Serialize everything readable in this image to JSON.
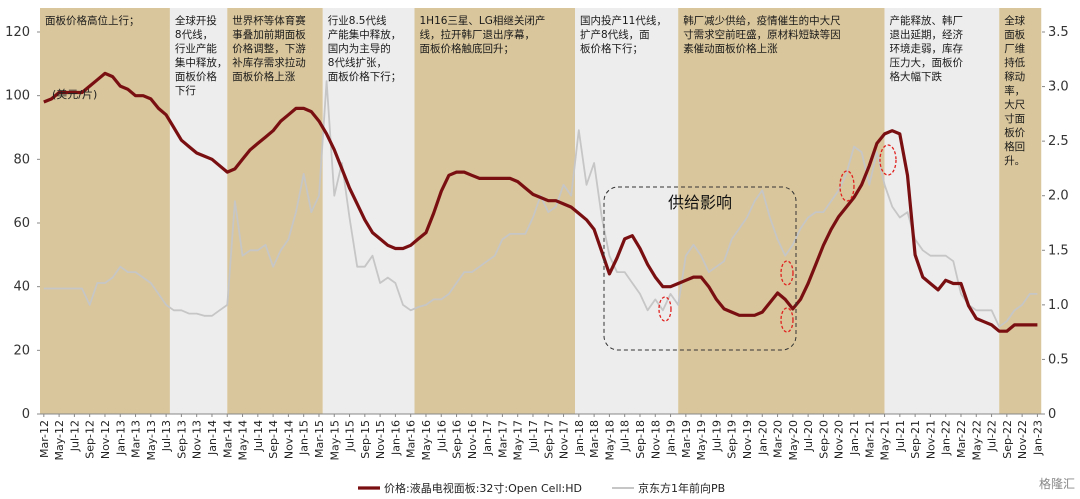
{
  "chart_data": {
    "type": "line",
    "unit_label": "(美元/片)",
    "box_label": "供给影响",
    "watermark": "格隆汇",
    "categories": [
      "Mar-12",
      null,
      "May-12",
      null,
      "Jul-12",
      null,
      "Sep-12",
      null,
      "Nov-12",
      null,
      "Jan-13",
      null,
      "Mar-13",
      null,
      "May-13",
      null,
      "Jul-13",
      null,
      "Sep-13",
      null,
      "Nov-13",
      null,
      "Jan-14",
      null,
      "Mar-14",
      null,
      "May-14",
      null,
      "Jul-14",
      null,
      "Sep-14",
      null,
      "Nov-14",
      null,
      "Jan-15",
      null,
      "Mar-15",
      null,
      "May-15",
      null,
      "Jul-15",
      null,
      "Sep-15",
      null,
      "Nov-15",
      null,
      "Jan-16",
      null,
      "Mar-16",
      null,
      "May-16",
      null,
      "Jul-16",
      null,
      "Sep-16",
      null,
      "Nov-16",
      null,
      "Jan-17",
      null,
      "Mar-17",
      null,
      "May-17",
      null,
      "Jul-17",
      null,
      "Sep-17",
      null,
      "Nov-17",
      null,
      "Jan-18",
      null,
      "Mar-18",
      null,
      "May-18",
      null,
      "Jul-18",
      null,
      "Sep-18",
      null,
      "Nov-18",
      null,
      "Jan-19",
      null,
      "Mar-19",
      null,
      "May-19",
      null,
      "Jul-19",
      null,
      "Sep-19",
      null,
      "Nov-19",
      null,
      "Jan-20",
      null,
      "Mar-20",
      null,
      "May-20",
      null,
      "Jul-20",
      null,
      "Sep-20",
      null,
      "Nov-20",
      null,
      "Jan-21",
      null,
      "Mar-21",
      null,
      "May-21",
      null,
      "Jul-21",
      null,
      "Sep-21",
      null,
      "Nov-21",
      null,
      "Jan-22",
      null,
      "Mar-22",
      null,
      "May-22",
      null,
      "Jul-22",
      null,
      "Sep-22",
      null,
      "Nov-22",
      null,
      "Jan-23"
    ],
    "series": [
      {
        "name": "价格:液晶电视面板:32寸:Open Cell:HD",
        "color": "#7a0f12",
        "axis": "y",
        "values": [
          98,
          99,
          101,
          101,
          101,
          101,
          103,
          105,
          107,
          106,
          103,
          102,
          100,
          100,
          99,
          96,
          94,
          90,
          86,
          84,
          82,
          81,
          80,
          78,
          76,
          77,
          80,
          83,
          85,
          87,
          89,
          92,
          94,
          96,
          96,
          95,
          92,
          88,
          83,
          77,
          71,
          66,
          61,
          57,
          55,
          53,
          52,
          52,
          53,
          55,
          57,
          63,
          70,
          75,
          76,
          76,
          75,
          74,
          74,
          74,
          74,
          74,
          73,
          71,
          69,
          68,
          67,
          67,
          66,
          65,
          63,
          61,
          58,
          51,
          44,
          49,
          55,
          56,
          52,
          47,
          43,
          40,
          40,
          41,
          42,
          43,
          43,
          40,
          36,
          33,
          32,
          31,
          31,
          31,
          32,
          35,
          38,
          36,
          33,
          36,
          41,
          47,
          53,
          58,
          62,
          65,
          68,
          72,
          78,
          85,
          88,
          89,
          88,
          75,
          50,
          43,
          41,
          39,
          42,
          41,
          41,
          34,
          30,
          29,
          28,
          26,
          26,
          28,
          28,
          28,
          28
        ]
      },
      {
        "name": "京东方1年前向PB",
        "color": "#c6c6c6",
        "axis": "y2",
        "values": [
          1.15,
          1.15,
          1.15,
          1.15,
          1.15,
          1.15,
          1.0,
          1.2,
          1.2,
          1.25,
          1.35,
          1.3,
          1.3,
          1.25,
          1.2,
          1.1,
          1.0,
          0.95,
          0.95,
          0.92,
          0.92,
          0.9,
          0.9,
          0.95,
          1.0,
          1.95,
          1.45,
          1.5,
          1.5,
          1.55,
          1.35,
          1.5,
          1.6,
          1.85,
          2.2,
          1.85,
          2.0,
          3.05,
          2.0,
          2.3,
          1.8,
          1.35,
          1.35,
          1.45,
          1.2,
          1.25,
          1.2,
          1.0,
          0.95,
          0.98,
          1.0,
          1.05,
          1.05,
          1.1,
          1.2,
          1.3,
          1.3,
          1.35,
          1.4,
          1.45,
          1.6,
          1.65,
          1.65,
          1.65,
          1.8,
          2.0,
          1.85,
          1.9,
          2.1,
          2.0,
          2.6,
          2.1,
          2.3,
          1.8,
          1.45,
          1.3,
          1.3,
          1.2,
          1.1,
          0.95,
          1.05,
          0.95,
          1.1,
          1.0,
          1.45,
          1.55,
          1.45,
          1.3,
          1.35,
          1.4,
          1.6,
          1.7,
          1.8,
          1.95,
          2.05,
          1.8,
          1.6,
          1.45,
          1.55,
          1.7,
          1.8,
          1.85,
          1.85,
          1.95,
          2.05,
          2.2,
          2.45,
          2.4,
          2.1,
          2.4,
          2.1,
          1.9,
          1.8,
          1.85,
          1.6,
          1.5,
          1.45,
          1.45,
          1.45,
          1.4,
          1.1,
          1.0,
          0.95,
          0.95,
          0.95,
          0.8,
          0.85,
          0.95,
          1.0,
          1.1,
          1.1
        ]
      }
    ],
    "ylim": [
      0,
      120
    ],
    "yticks": [
      0,
      20,
      40,
      60,
      80,
      100,
      120
    ],
    "y2lim": [
      0,
      3.5
    ],
    "y2ticks": [
      0,
      0.5,
      {
        "value": 1,
        "label": "1.0"
      },
      1.5,
      {
        "value": 2,
        "label": "2.0"
      },
      2.5,
      {
        "value": 3,
        "label": "3.0"
      },
      3.5
    ],
    "periods": [
      {
        "from": -0.5,
        "to": 16.5,
        "color": "#d9c69c",
        "lines": [
          "面板价格高位上行；"
        ]
      },
      {
        "from": 16.5,
        "to": 24,
        "color": "#ededed",
        "lines": [
          "全球开投",
          "8代线，",
          "行业产能",
          "集中释放，",
          "面板价格",
          "下行"
        ]
      },
      {
        "from": 24,
        "to": 36.5,
        "color": "#d9c69c",
        "lines": [
          "世界杯等体育赛",
          "事叠加前期面板",
          "价格调整，下游",
          "补库存需求拉动",
          "面板价格上涨"
        ]
      },
      {
        "from": 36.5,
        "to": 48.5,
        "color": "#ededed",
        "lines": [
          "行业8.5代线",
          "产能集中释放，",
          "国内为主导的",
          "8代线扩张，",
          "面板价格下行；"
        ]
      },
      {
        "from": 48.5,
        "to": 69.5,
        "color": "#d9c69c",
        "lines": [
          "1H16三星、LG相继关闭产",
          "线，拉开韩厂退出序幕，",
          "面板价格触底回升；"
        ]
      },
      {
        "from": 69.5,
        "to": 83,
        "color": "#ededed",
        "lines": [
          "国内投产11代线，",
          "扩产8代线，面",
          "板价格下行；"
        ]
      },
      {
        "from": 83,
        "to": 110,
        "color": "#d9c69c",
        "lines": [
          "韩厂减少供给，疫情催生的中大尺",
          "寸需求空前旺盛，原材料短缺等因",
          "素催动面板价格上涨"
        ]
      },
      {
        "from": 110,
        "to": 125,
        "color": "#ededed",
        "lines": [
          "产能释放、韩厂",
          "退出延期，经济",
          "环境走弱，库存",
          "压力大，面板价",
          "格大幅下跌"
        ]
      },
      {
        "from": 125,
        "to": 130.5,
        "color": "#d9c69c",
        "lines": [
          "全球",
          "面板",
          "厂维",
          "持低",
          "稼动",
          "率，",
          "大尺",
          "寸面",
          "板价",
          "格回",
          "升。"
        ]
      }
    ]
  }
}
